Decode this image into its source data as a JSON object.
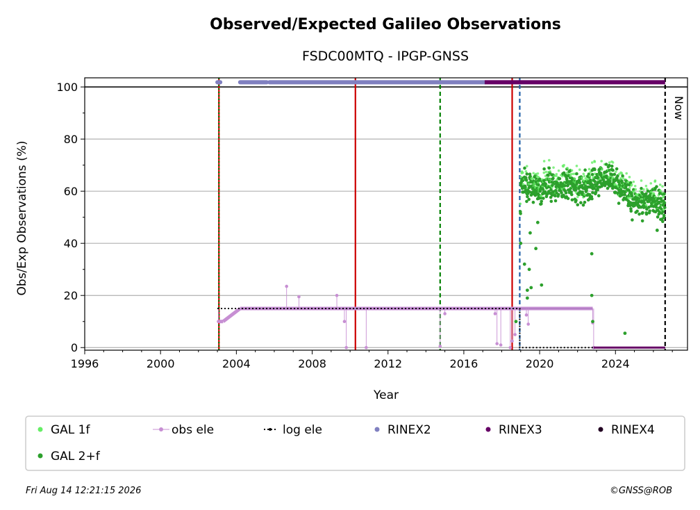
{
  "chart_data": {
    "type": "scatter",
    "title": "Observed/Expected Galileo Observations",
    "subtitle": "FSDC00MTQ - IPGP-GNSS",
    "xlabel": "Year",
    "ylabel": "Obs/Exp Observations (%)",
    "xlim": [
      1996,
      2027.8
    ],
    "ylim": [
      -1,
      103.5
    ],
    "xticks": [
      1996,
      2000,
      2004,
      2008,
      2012,
      2016,
      2020,
      2024
    ],
    "yticks": [
      0,
      20,
      40,
      60,
      80,
      100
    ],
    "grid": "horizontal",
    "legend_position": "bottom",
    "legend": [
      "GAL 1f",
      "obs ele",
      "log ele",
      "RINEX2",
      "RINEX3",
      "RINEX4",
      "GAL 2+f"
    ],
    "now_label": "Now",
    "vlines": [
      {
        "x": 2003.08,
        "style": "solid",
        "color": "#cc0000"
      },
      {
        "x": 2003.08,
        "style": "dotted",
        "color": "#008000"
      },
      {
        "x": 2010.28,
        "style": "solid",
        "color": "#cc0000"
      },
      {
        "x": 2014.75,
        "style": "dashed",
        "color": "#008000"
      },
      {
        "x": 2018.55,
        "style": "solid",
        "color": "#cc0000"
      },
      {
        "x": 2018.95,
        "style": "dashed",
        "color": "#1f5fa8"
      },
      {
        "x": 2026.62,
        "style": "dashed",
        "color": "#000000"
      }
    ],
    "log_ele": [
      {
        "x": 2003.0,
        "y": 15
      },
      {
        "x": 2018.95,
        "y": 15
      },
      {
        "x": 2018.95,
        "y": 0
      },
      {
        "x": 2026.62,
        "y": 0
      }
    ],
    "rinex2_segments": [
      [
        2003.0,
        2003.15
      ],
      [
        2004.2,
        2005.6
      ],
      [
        2005.75,
        2017.1
      ]
    ],
    "rinex3_segments": [
      [
        2017.1,
        2026.62
      ]
    ],
    "obs_ele_baseline": [
      [
        2003.1,
        2003.3,
        10,
        10
      ],
      [
        2003.3,
        2004.2,
        10,
        15
      ],
      [
        2004.2,
        2022.8,
        15,
        15
      ]
    ],
    "obs_ele_points": [
      {
        "x": 2003.05,
        "y": 10
      },
      {
        "x": 2006.65,
        "y": 23.5
      },
      {
        "x": 2007.3,
        "y": 19.5
      },
      {
        "x": 2009.3,
        "y": 20
      },
      {
        "x": 2009.7,
        "y": 10
      },
      {
        "x": 2009.8,
        "y": 0
      },
      {
        "x": 2010.85,
        "y": 0
      },
      {
        "x": 2014.75,
        "y": 0.5
      },
      {
        "x": 2015.0,
        "y": 13
      },
      {
        "x": 2017.65,
        "y": 13
      },
      {
        "x": 2017.75,
        "y": 1.5
      },
      {
        "x": 2017.95,
        "y": 1
      },
      {
        "x": 2018.45,
        "y": 0
      },
      {
        "x": 2018.55,
        "y": 2.5
      },
      {
        "x": 2018.7,
        "y": 5
      },
      {
        "x": 2019.3,
        "y": 12.5
      },
      {
        "x": 2019.4,
        "y": 9
      },
      {
        "x": 2022.8,
        "y": 9.5
      },
      {
        "x": 2022.85,
        "y": 0
      }
    ],
    "gal_2f_summary": [
      {
        "x": 2019.0,
        "y": 64
      },
      {
        "x": 2019.5,
        "y": 62
      },
      {
        "x": 2020.0,
        "y": 61
      },
      {
        "x": 2020.5,
        "y": 63
      },
      {
        "x": 2021.0,
        "y": 61
      },
      {
        "x": 2021.5,
        "y": 63
      },
      {
        "x": 2022.0,
        "y": 61
      },
      {
        "x": 2022.5,
        "y": 62
      },
      {
        "x": 2023.0,
        "y": 64
      },
      {
        "x": 2023.5,
        "y": 65
      },
      {
        "x": 2024.0,
        "y": 64
      },
      {
        "x": 2024.5,
        "y": 60
      },
      {
        "x": 2025.0,
        "y": 55
      },
      {
        "x": 2025.5,
        "y": 56
      },
      {
        "x": 2026.0,
        "y": 57
      },
      {
        "x": 2026.5,
        "y": 54
      }
    ],
    "gal_2f_outliers": [
      {
        "x": 2019.2,
        "y": 32
      },
      {
        "x": 2019.35,
        "y": 22
      },
      {
        "x": 2019.35,
        "y": 19
      },
      {
        "x": 2019.45,
        "y": 30
      },
      {
        "x": 2019.55,
        "y": 23
      },
      {
        "x": 2019.5,
        "y": 44
      },
      {
        "x": 2019.8,
        "y": 38
      },
      {
        "x": 2019.9,
        "y": 48
      },
      {
        "x": 2020.1,
        "y": 24
      },
      {
        "x": 2019.0,
        "y": 40
      },
      {
        "x": 2018.75,
        "y": 10
      },
      {
        "x": 2022.75,
        "y": 36
      },
      {
        "x": 2022.75,
        "y": 20
      },
      {
        "x": 2022.8,
        "y": 10
      },
      {
        "x": 2024.5,
        "y": 5.5
      },
      {
        "x": 2026.2,
        "y": 45
      }
    ],
    "colors": {
      "gal_1f": "#66ee66",
      "gal_2f": "#2ca02c",
      "obs_ele": "#c78fd3",
      "log_ele": "#000000",
      "rinex2": "#8080c0",
      "rinex3": "#660066",
      "rinex4": "#220022",
      "grid": "#b0b0b0"
    }
  },
  "footer": {
    "timestamp": "Fri Aug 14 12:21:15 2026",
    "credit": "©GNSS@ROB"
  }
}
